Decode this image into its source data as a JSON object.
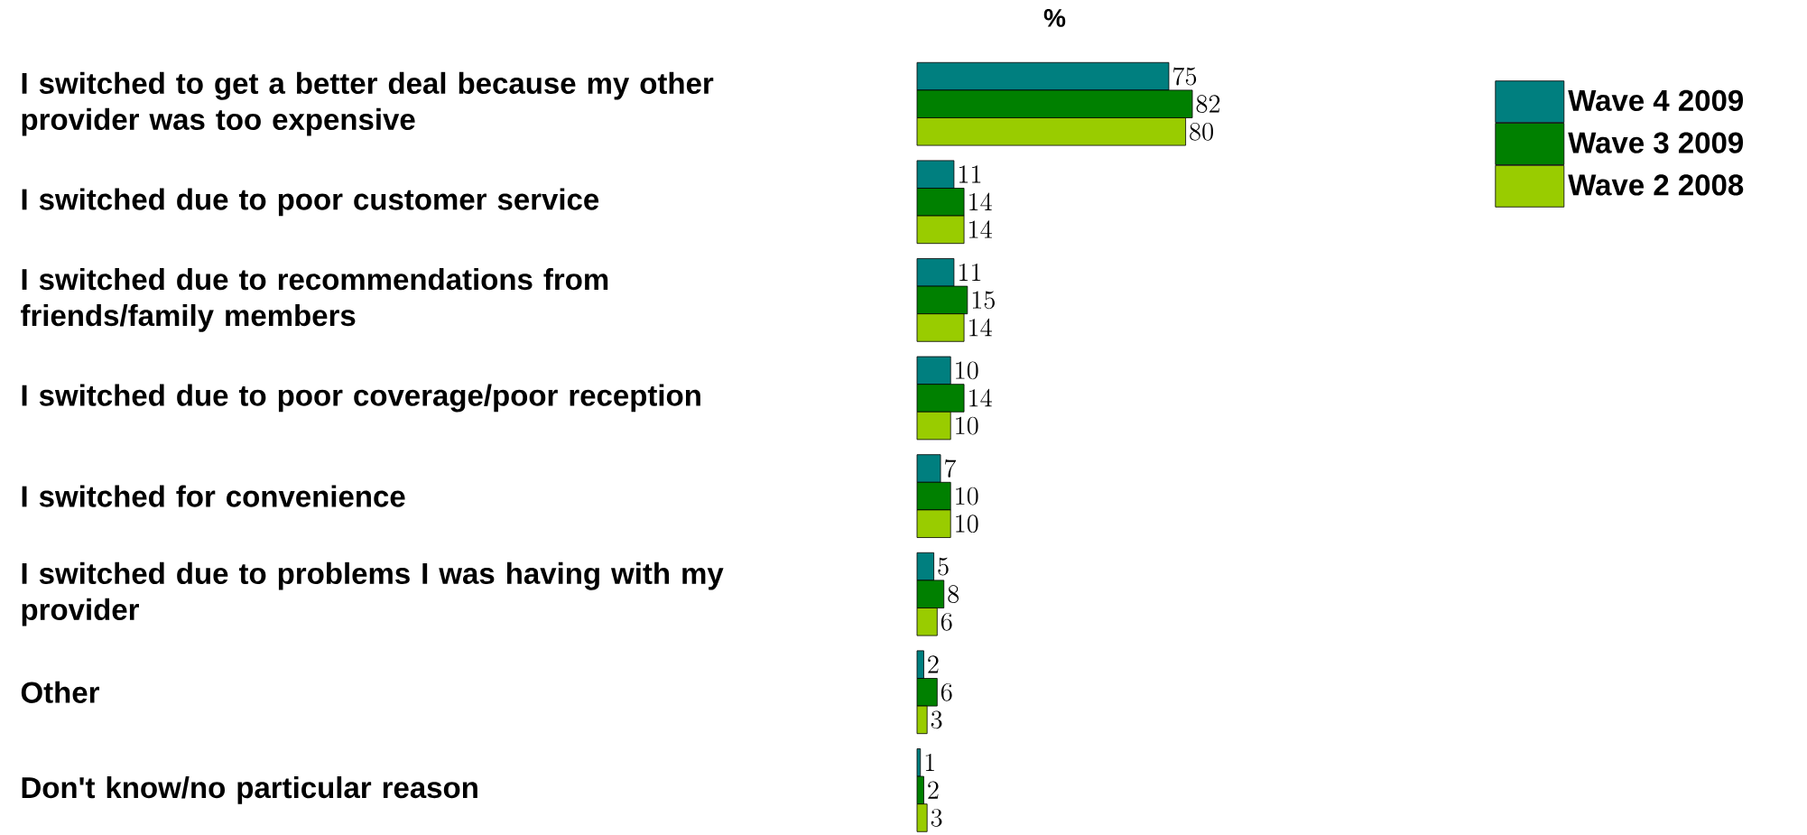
{
  "chart_data": {
    "type": "bar",
    "orientation": "horizontal",
    "title": "%",
    "categories": [
      "I switched to get a better deal because my other provider was too expensive",
      "I switched due to poor customer service",
      "I switched due to recommendations from friends/family members",
      "I switched due to poor coverage/poor reception",
      "I switched for convenience",
      "I switched due to problems I was having with my provider",
      "Other",
      "Don't know/no particular reason"
    ],
    "series": [
      {
        "name": "Wave 4 2009",
        "color": "#007f7f",
        "values": [
          75,
          11,
          11,
          10,
          7,
          5,
          2,
          1
        ]
      },
      {
        "name": "Wave 3 2009",
        "color": "#008000",
        "values": [
          82,
          14,
          15,
          14,
          10,
          8,
          6,
          2
        ]
      },
      {
        "name": "Wave 2 2008",
        "color": "#99cc00",
        "values": [
          80,
          14,
          14,
          10,
          10,
          6,
          3,
          3
        ]
      }
    ],
    "data_labels": true,
    "legend": "top right"
  }
}
